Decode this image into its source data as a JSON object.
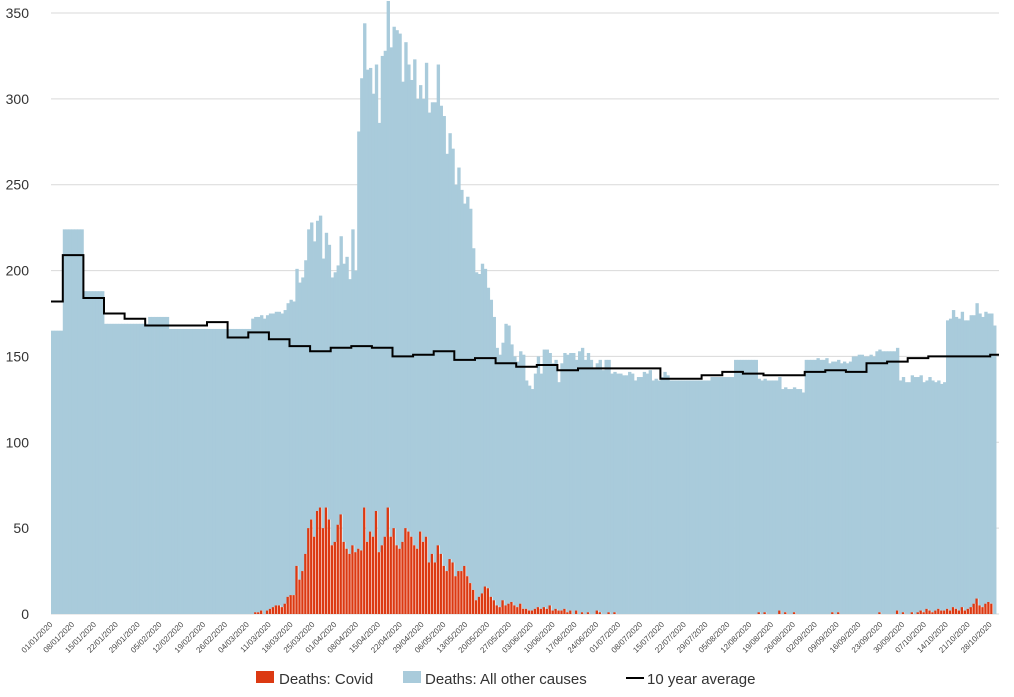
{
  "chart_data": {
    "type": "bar",
    "stacked": true,
    "ylim": [
      0,
      350
    ],
    "yticks": [
      0,
      50,
      100,
      150,
      200,
      250,
      300,
      350
    ],
    "grid": "horizontal",
    "legend_position": "bottom",
    "x_labels": [
      "01/01/2020",
      "08/01/2020",
      "15/01/2020",
      "22/01/2020",
      "29/01/2020",
      "05/02/2020",
      "12/02/2020",
      "19/02/2020",
      "26/02/2020",
      "04/03/2020",
      "11/03/2020",
      "18/03/2020",
      "25/03/2020",
      "01/04/2020",
      "08/04/2020",
      "15/04/2020",
      "22/04/2020",
      "29/04/2020",
      "06/05/2020",
      "13/05/2020",
      "20/05/2020",
      "27/05/2020",
      "03/06/2020",
      "10/06/2020",
      "17/06/2020",
      "24/06/2020",
      "01/07/2020",
      "08/07/2020",
      "15/07/2020",
      "22/07/2020",
      "29/07/2020",
      "05/08/2020",
      "12/08/2020",
      "19/08/2020",
      "26/08/2020",
      "02/09/2020",
      "09/09/2020",
      "16/09/2020",
      "23/09/2020",
      "30/09/2020",
      "07/10/2020",
      "14/10/2020",
      "21/10/2020",
      "28/10/2020"
    ],
    "colors": {
      "covid": "#dc3912",
      "other": "#a9cbdb",
      "average": "#000000"
    },
    "series": [
      {
        "name": "Deaths: Covid",
        "stack_position": "bottom",
        "values": [
          0,
          0,
          0,
          0,
          0,
          0,
          0,
          0,
          0,
          0,
          0,
          0,
          0,
          0,
          0,
          0,
          0,
          0,
          0,
          0,
          0,
          0,
          0,
          0,
          0,
          0,
          0,
          0,
          0,
          0,
          0,
          0,
          0,
          0,
          0,
          0,
          0,
          0,
          0,
          0,
          0,
          0,
          0,
          0,
          0,
          0,
          0,
          0,
          0,
          0,
          0,
          0,
          0,
          0,
          0,
          0,
          0,
          0,
          0,
          0,
          0,
          0,
          0,
          0,
          0,
          0,
          0,
          0,
          0,
          1,
          1,
          2,
          0,
          2,
          3,
          4,
          5,
          5,
          4,
          6,
          10,
          11,
          11,
          28,
          20,
          25,
          35,
          50,
          55,
          45,
          60,
          62,
          50,
          62,
          55,
          40,
          42,
          52,
          58,
          42,
          38,
          35,
          40,
          36,
          38,
          37,
          62,
          42,
          48,
          45,
          60,
          36,
          40,
          45,
          62,
          45,
          50,
          40,
          38,
          42,
          50,
          48,
          45,
          40,
          38,
          48,
          42,
          45,
          30,
          35,
          30,
          40,
          35,
          28,
          25,
          32,
          30,
          22,
          25,
          25,
          28,
          22,
          18,
          14,
          8,
          10,
          12,
          16,
          15,
          10,
          8,
          5,
          4,
          8,
          5,
          6,
          7,
          5,
          4,
          6,
          3,
          3,
          2,
          2,
          3,
          4,
          3,
          4,
          3,
          5,
          2,
          3,
          2,
          2,
          3,
          1,
          2,
          0,
          2,
          0,
          1,
          0,
          1,
          0,
          0,
          2,
          1,
          0,
          0,
          1,
          0,
          1,
          0,
          0,
          0,
          0,
          0,
          0,
          0,
          0,
          0,
          0,
          0,
          0,
          0,
          0,
          0,
          0,
          0,
          0,
          0,
          0,
          0,
          0,
          0,
          0,
          0,
          0,
          0,
          0,
          0,
          0,
          0,
          0,
          0,
          0,
          0,
          0,
          0,
          0,
          0,
          0,
          0,
          0,
          0,
          0,
          0,
          0,
          0,
          0,
          1,
          0,
          1,
          0,
          0,
          0,
          0,
          2,
          0,
          1,
          0,
          0,
          1,
          0,
          0,
          0,
          0,
          0,
          0,
          0,
          0,
          0,
          0,
          0,
          0,
          1,
          0,
          1,
          0,
          0,
          0,
          0,
          0,
          0,
          0,
          0,
          0,
          0,
          0,
          0,
          0,
          1,
          0,
          0,
          0,
          0,
          0,
          2,
          0,
          1,
          0,
          0,
          1,
          0,
          1,
          2,
          1,
          3,
          2,
          1,
          2,
          3,
          2,
          2,
          3,
          2,
          4,
          3,
          2,
          4,
          2,
          3,
          4,
          6,
          9,
          5,
          4,
          6,
          7,
          6,
          0,
          0
        ]
      },
      {
        "name": "Deaths: All other causes",
        "stack_position": "top",
        "values": [
          165,
          165,
          165,
          165,
          224,
          224,
          224,
          224,
          224,
          224,
          224,
          188,
          188,
          188,
          188,
          188,
          188,
          188,
          169,
          169,
          169,
          169,
          169,
          169,
          169,
          169,
          169,
          169,
          169,
          169,
          169,
          169,
          169,
          173,
          173,
          173,
          173,
          173,
          173,
          173,
          166,
          166,
          166,
          166,
          166,
          166,
          166,
          166,
          166,
          166,
          166,
          166,
          166,
          166,
          166,
          166,
          166,
          166,
          166,
          166,
          166,
          166,
          166,
          166,
          166,
          166,
          166,
          166,
          172,
          172,
          172,
          172,
          172,
          172,
          172,
          171,
          171,
          171,
          171,
          171,
          171,
          172,
          171,
          173,
          173,
          171,
          171,
          174,
          173,
          172,
          169,
          170,
          157,
          160,
          160,
          156,
          157,
          151,
          162,
          162,
          170,
          160,
          184,
          164,
          243,
          275,
          282,
          275,
          270,
          258,
          260,
          250,
          285,
          283,
          295,
          285,
          292,
          300,
          300,
          268,
          283,
          272,
          266,
          283,
          262,
          260,
          258,
          276,
          262,
          263,
          268,
          280,
          261,
          262,
          243,
          248,
          241,
          228,
          235,
          222,
          211,
          221,
          218,
          199,
          191,
          188,
          192,
          185,
          175,
          173,
          165,
          150,
          147,
          150,
          164,
          162,
          150,
          145,
          143,
          147,
          148,
          133,
          131,
          129,
          137,
          146,
          137,
          150,
          151,
          147,
          144,
          145,
          133,
          144,
          149,
          150,
          150,
          152,
          146,
          153,
          154,
          148,
          151,
          148,
          143,
          144,
          147,
          142,
          148,
          147,
          140,
          140,
          140,
          140,
          139,
          139,
          141,
          140,
          136,
          138,
          138,
          141,
          140,
          142,
          136,
          137,
          136,
          138,
          141,
          139,
          136,
          136,
          136,
          136,
          136,
          136,
          136,
          136,
          136,
          136,
          136,
          136,
          136,
          136,
          138,
          138,
          138,
          138,
          138,
          138,
          138,
          138,
          148,
          148,
          148,
          148,
          148,
          148,
          148,
          148,
          136,
          136,
          136,
          136,
          136,
          136,
          136,
          136,
          131,
          131,
          131,
          131,
          131,
          131,
          131,
          129,
          148,
          148,
          148,
          148,
          149,
          148,
          148,
          149,
          146,
          146,
          147,
          147,
          146,
          147,
          146,
          147,
          150,
          150,
          151,
          151,
          150,
          150,
          151,
          150,
          153,
          153,
          153,
          153,
          153,
          153,
          153,
          153,
          136,
          137,
          135,
          135,
          138,
          138,
          137,
          137,
          134,
          133,
          136,
          135,
          133,
          133,
          132,
          133,
          168,
          170,
          173,
          170,
          170,
          172,
          169,
          168,
          170,
          168,
          172,
          170,
          169,
          170,
          168,
          169,
          168,
          0,
          0,
          0,
          0,
          0,
          0,
          0,
          0,
          0,
          0,
          0,
          0,
          0,
          0,
          0,
          0,
          0,
          0,
          0,
          0,
          0,
          0,
          0,
          0,
          0,
          0,
          0
        ]
      },
      {
        "name": "10 year average",
        "type": "line",
        "steps": [
          {
            "start": 0,
            "value": 182
          },
          {
            "start": 4,
            "value": 209
          },
          {
            "start": 11,
            "value": 184
          },
          {
            "start": 18,
            "value": 175
          },
          {
            "start": 25,
            "value": 172
          },
          {
            "start": 32,
            "value": 168
          },
          {
            "start": 39,
            "value": 168
          },
          {
            "start": 46,
            "value": 168
          },
          {
            "start": 53,
            "value": 170
          },
          {
            "start": 60,
            "value": 161
          },
          {
            "start": 67,
            "value": 164
          },
          {
            "start": 74,
            "value": 160
          },
          {
            "start": 81,
            "value": 156
          },
          {
            "start": 88,
            "value": 153
          },
          {
            "start": 95,
            "value": 155
          },
          {
            "start": 102,
            "value": 156
          },
          {
            "start": 109,
            "value": 155
          },
          {
            "start": 116,
            "value": 150
          },
          {
            "start": 123,
            "value": 151
          },
          {
            "start": 130,
            "value": 153
          },
          {
            "start": 137,
            "value": 148
          },
          {
            "start": 144,
            "value": 149
          },
          {
            "start": 151,
            "value": 146
          },
          {
            "start": 158,
            "value": 144
          },
          {
            "start": 165,
            "value": 145
          },
          {
            "start": 172,
            "value": 142
          },
          {
            "start": 179,
            "value": 143
          },
          {
            "start": 186,
            "value": 143
          },
          {
            "start": 193,
            "value": 143
          },
          {
            "start": 200,
            "value": 143
          },
          {
            "start": 207,
            "value": 137
          },
          {
            "start": 214,
            "value": 137
          },
          {
            "start": 221,
            "value": 139
          },
          {
            "start": 228,
            "value": 141
          },
          {
            "start": 235,
            "value": 140
          },
          {
            "start": 242,
            "value": 139
          },
          {
            "start": 249,
            "value": 139
          },
          {
            "start": 256,
            "value": 141
          },
          {
            "start": 263,
            "value": 142
          },
          {
            "start": 270,
            "value": 141
          },
          {
            "start": 277,
            "value": 146
          },
          {
            "start": 284,
            "value": 147
          },
          {
            "start": 291,
            "value": 149
          },
          {
            "start": 298,
            "value": 150
          },
          {
            "start": 305,
            "value": 150
          },
          {
            "start": 312,
            "value": 150
          },
          {
            "start": 319,
            "value": 151
          }
        ]
      }
    ]
  }
}
